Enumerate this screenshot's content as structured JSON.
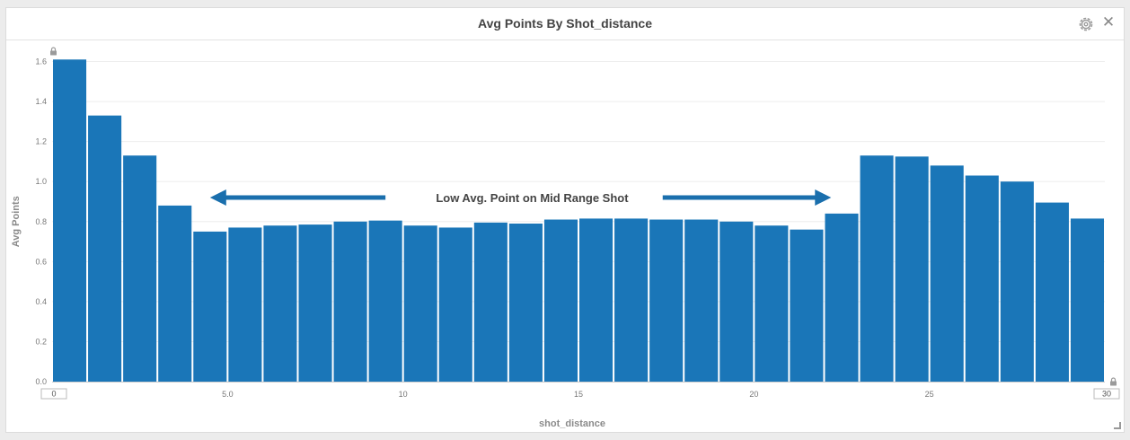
{
  "panel": {
    "title": "Avg Points By Shot_distance",
    "settings_icon": "gear-icon",
    "close_icon": "close-icon",
    "close_glyph": "✕"
  },
  "chart_data": {
    "type": "bar",
    "title": "Avg Points By Shot_distance",
    "xlabel": "shot_distance",
    "ylabel": "Avg Points",
    "ylim": [
      0,
      1.6
    ],
    "y_ticks": [
      "0.0",
      "0.2",
      "0.4",
      "0.6",
      "0.8",
      "1.0",
      "1.2",
      "1.4",
      "1.6"
    ],
    "x_ticks": [
      {
        "value": 5,
        "label": "5.0"
      },
      {
        "value": 10,
        "label": "10"
      },
      {
        "value": 15,
        "label": "15"
      },
      {
        "value": 20,
        "label": "20"
      },
      {
        "value": 25,
        "label": "25"
      }
    ],
    "x_range": {
      "min": "0",
      "max": "30"
    },
    "grid": true,
    "bar_color": "#1a76b8",
    "x": [
      0,
      1,
      2,
      3,
      4,
      5,
      6,
      7,
      8,
      9,
      10,
      11,
      12,
      13,
      14,
      15,
      16,
      17,
      18,
      19,
      20,
      21,
      22,
      23,
      24,
      25,
      26,
      27,
      28,
      29
    ],
    "values": [
      1.61,
      1.33,
      1.13,
      0.88,
      0.75,
      0.77,
      0.78,
      0.785,
      0.8,
      0.805,
      0.78,
      0.77,
      0.795,
      0.79,
      0.81,
      0.815,
      0.815,
      0.81,
      0.81,
      0.8,
      0.78,
      0.76,
      0.84,
      1.13,
      1.125,
      1.08,
      1.03,
      1.0,
      0.895,
      0.815
    ],
    "annotation": {
      "text": "Low Avg. Point on Mid Range Shot",
      "arrow_left_from": 9.5,
      "arrow_left_to": 4.5,
      "arrow_right_from": 17.4,
      "arrow_right_to": 22.2,
      "y": 0.92,
      "color": "#1a6fad"
    }
  }
}
